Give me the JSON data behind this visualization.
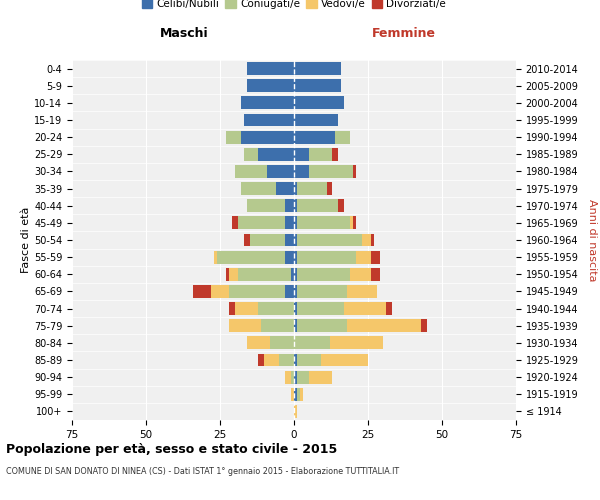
{
  "age_groups": [
    "100+",
    "95-99",
    "90-94",
    "85-89",
    "80-84",
    "75-79",
    "70-74",
    "65-69",
    "60-64",
    "55-59",
    "50-54",
    "45-49",
    "40-44",
    "35-39",
    "30-34",
    "25-29",
    "20-24",
    "15-19",
    "10-14",
    "5-9",
    "0-4"
  ],
  "birth_years": [
    "≤ 1914",
    "1915-1919",
    "1920-1924",
    "1925-1929",
    "1930-1934",
    "1935-1939",
    "1940-1944",
    "1945-1949",
    "1950-1954",
    "1955-1959",
    "1960-1964",
    "1965-1969",
    "1970-1974",
    "1975-1979",
    "1980-1984",
    "1985-1989",
    "1990-1994",
    "1995-1999",
    "2000-2004",
    "2005-2009",
    "2010-2014"
  ],
  "colors": {
    "celibi": "#3d6fac",
    "coniugati": "#b5c98e",
    "vedovi": "#f5c76a",
    "divorziati": "#c0392b"
  },
  "maschi": {
    "celibi": [
      0,
      0,
      0,
      0,
      0,
      0,
      0,
      3,
      1,
      3,
      3,
      3,
      3,
      6,
      9,
      12,
      18,
      17,
      18,
      16,
      16
    ],
    "coniugati": [
      0,
      0,
      1,
      5,
      8,
      11,
      12,
      19,
      18,
      23,
      12,
      16,
      13,
      12,
      11,
      5,
      5,
      0,
      0,
      0,
      0
    ],
    "vedovi": [
      0,
      1,
      2,
      5,
      8,
      11,
      8,
      6,
      3,
      1,
      0,
      0,
      0,
      0,
      0,
      0,
      0,
      0,
      0,
      0,
      0
    ],
    "divorziati": [
      0,
      0,
      0,
      2,
      0,
      0,
      2,
      6,
      1,
      0,
      2,
      2,
      0,
      0,
      0,
      0,
      0,
      0,
      0,
      0,
      0
    ]
  },
  "femmine": {
    "celibi": [
      0,
      1,
      1,
      1,
      0,
      1,
      1,
      1,
      1,
      1,
      1,
      1,
      1,
      1,
      5,
      5,
      14,
      15,
      17,
      16,
      16
    ],
    "coniugati": [
      0,
      1,
      4,
      8,
      12,
      17,
      16,
      17,
      18,
      20,
      22,
      18,
      14,
      10,
      15,
      8,
      5,
      0,
      0,
      0,
      0
    ],
    "vedovi": [
      1,
      1,
      8,
      16,
      18,
      25,
      14,
      10,
      7,
      5,
      3,
      1,
      0,
      0,
      0,
      0,
      0,
      0,
      0,
      0,
      0
    ],
    "divorziati": [
      0,
      0,
      0,
      0,
      0,
      2,
      2,
      0,
      3,
      3,
      1,
      1,
      2,
      2,
      1,
      2,
      0,
      0,
      0,
      0,
      0
    ]
  },
  "xlim": 75,
  "title": "Popolazione per età, sesso e stato civile - 2015",
  "subtitle": "COMUNE DI SAN DONATO DI NINEA (CS) - Dati ISTAT 1° gennaio 2015 - Elaborazione TUTTITALIA.IT",
  "xlabel_left": "Maschi",
  "xlabel_right": "Femmine",
  "ylabel_left": "Fasce di età",
  "ylabel_right": "Anni di nascita",
  "legend_labels": [
    "Celibi/Nubili",
    "Coniugati/e",
    "Vedovi/e",
    "Divorziati/e"
  ],
  "background": "#f0f0f0"
}
